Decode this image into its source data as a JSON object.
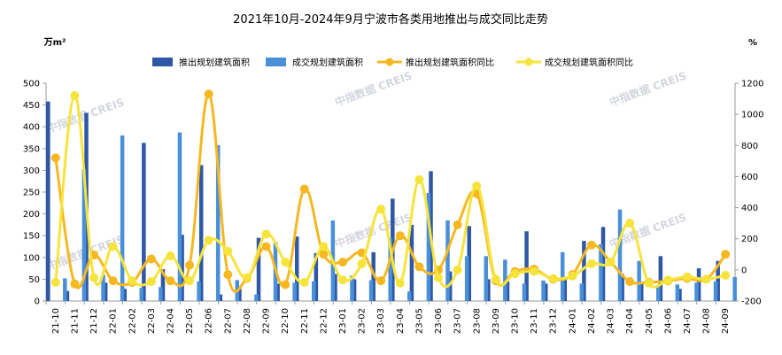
{
  "chart_data": {
    "type": "bar",
    "title": "2021年10月-2024年9月宁波市各类用地推出与成交同比走势",
    "left_unit": "万m²",
    "right_unit": "%",
    "categories": [
      "21-10",
      "21-11",
      "21-12",
      "22-01",
      "22-02",
      "22-03",
      "22-04",
      "22-05",
      "22-06",
      "22-07",
      "22-08",
      "22-09",
      "22-10",
      "22-11",
      "22-12",
      "23-01",
      "23-02",
      "23-03",
      "23-04",
      "23-05",
      "23-06",
      "23-07",
      "23-08",
      "23-09",
      "23-10",
      "23-11",
      "23-12",
      "24-01",
      "24-02",
      "24-03",
      "24-04",
      "24-05",
      "24-06",
      "24-07",
      "24-08",
      "24-09"
    ],
    "ylim_left": [
      0,
      500
    ],
    "yticks_left": [
      0,
      50,
      100,
      150,
      200,
      250,
      300,
      350,
      400,
      450,
      500
    ],
    "ylim_right": [
      -200,
      1200
    ],
    "yticks_right": [
      -200,
      0,
      200,
      400,
      600,
      800,
      1000,
      1200
    ],
    "series": [
      {
        "name": "推出规划建筑面积",
        "kind": "bar",
        "axis": "left",
        "color": "#2e58a6",
        "values": [
          458,
          23,
          432,
          42,
          28,
          363,
          73,
          152,
          312,
          15,
          28,
          145,
          40,
          148,
          110,
          62,
          50,
          112,
          235,
          175,
          298,
          68,
          172,
          50,
          45,
          160,
          40,
          52,
          138,
          170,
          62,
          40,
          103,
          28,
          75,
          92
        ]
      },
      {
        "name": "成交规划建筑面积",
        "kind": "bar",
        "axis": "left",
        "color": "#4a90d9",
        "values": [
          52,
          303,
          60,
          380,
          30,
          32,
          387,
          45,
          358,
          48,
          15,
          135,
          42,
          45,
          185,
          58,
          48,
          145,
          22,
          248,
          185,
          103,
          103,
          95,
          40,
          47,
          112,
          40,
          130,
          210,
          92,
          35,
          38,
          42,
          45,
          55
        ]
      },
      {
        "name": "推出规划建筑面积同比",
        "kind": "line",
        "axis": "right",
        "color": "#f5b822",
        "values": [
          720,
          -90,
          95,
          -70,
          -80,
          70,
          -70,
          30,
          1130,
          -30,
          -55,
          150,
          -95,
          520,
          100,
          50,
          110,
          -70,
          220,
          20,
          0,
          290,
          490,
          -70,
          -10,
          5,
          -60,
          -30,
          160,
          50,
          -75,
          -80,
          -70,
          -55,
          -60,
          100
        ]
      },
      {
        "name": "成交规划建筑面积同比",
        "kind": "line",
        "axis": "right",
        "color": "#f6e43d",
        "values": [
          -80,
          1120,
          -50,
          150,
          -70,
          -75,
          90,
          -70,
          190,
          120,
          -50,
          230,
          50,
          -80,
          150,
          -65,
          40,
          390,
          -85,
          580,
          -50,
          0,
          540,
          -60,
          -25,
          -10,
          -55,
          -40,
          40,
          50,
          300,
          -85,
          -65,
          -45,
          -60,
          -35
        ]
      }
    ],
    "watermark": "中指数据 CREIS"
  }
}
